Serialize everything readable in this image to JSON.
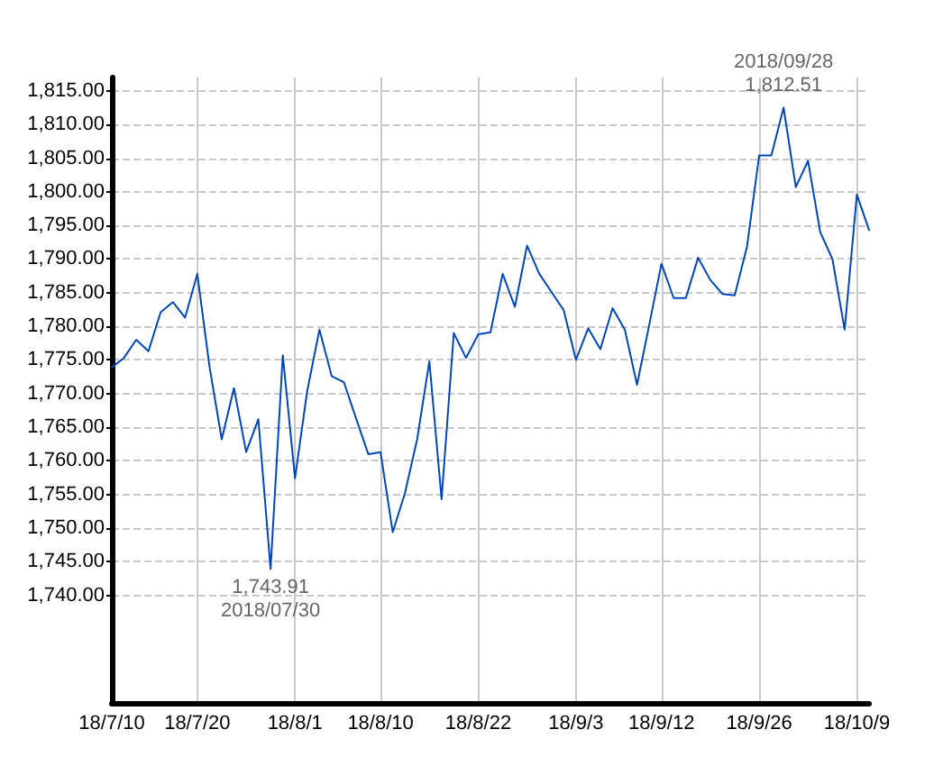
{
  "chart_data": {
    "type": "line",
    "categories": [
      "18/7/10",
      null,
      null,
      null,
      null,
      null,
      null,
      "18/7/20",
      null,
      null,
      null,
      null,
      null,
      null,
      null,
      "18/8/1",
      null,
      null,
      null,
      null,
      null,
      null,
      "18/8/10",
      null,
      null,
      null,
      null,
      null,
      null,
      null,
      "18/8/22",
      null,
      null,
      null,
      null,
      null,
      null,
      null,
      "18/9/3",
      null,
      null,
      null,
      null,
      null,
      null,
      "18/9/12",
      null,
      null,
      null,
      null,
      null,
      null,
      null,
      "18/9/26",
      null,
      null,
      null,
      null,
      null,
      null,
      null,
      "18/10/9",
      null
    ],
    "series": [
      {
        "color": "#0047bb",
        "values": [
          1773.9,
          1775.3,
          1778,
          1776.3,
          1782.1,
          1783.6,
          1781.3,
          1787.8,
          1774,
          1763.2,
          1770.8,
          1761.3,
          1766.2,
          1743.91,
          1775.7,
          1757.4,
          1770.4,
          1779.5,
          1772.6,
          1771.7,
          1766.3,
          1761,
          1761.3,
          1749.4,
          1755.2,
          1763.2,
          1774.8,
          1754.3,
          1779,
          1775.3,
          1778.8,
          1779.1,
          1787.8,
          1782.9,
          1792,
          1787.8,
          1785.1,
          1782.4,
          1775,
          1779.7,
          1776.6,
          1782.7,
          1779.5,
          1771.3,
          1780.2,
          1789.3,
          1784.2,
          1784.2,
          1790.2,
          1786.9,
          1784.8,
          1784.6,
          1791.8,
          1805.4,
          1805.4,
          1812.51,
          1800.7,
          1804.6,
          1794,
          1790,
          1779.5,
          1799.6,
          1794.3
        ]
      }
    ],
    "ylim": [
      1724,
      1817
    ],
    "yticks": [
      {
        "value": 1740,
        "label": "1,740.00"
      },
      {
        "value": 1745,
        "label": "1,745.00"
      },
      {
        "value": 1750,
        "label": "1,750.00"
      },
      {
        "value": 1755,
        "label": "1,755.00"
      },
      {
        "value": 1760,
        "label": "1,760.00"
      },
      {
        "value": 1765,
        "label": "1,765.00"
      },
      {
        "value": 1770,
        "label": "1,770.00"
      },
      {
        "value": 1775,
        "label": "1,775.00"
      },
      {
        "value": 1780,
        "label": "1,780.00"
      },
      {
        "value": 1785,
        "label": "1,785.00"
      },
      {
        "value": 1790,
        "label": "1,790.00"
      },
      {
        "value": 1795,
        "label": "1,795.00"
      },
      {
        "value": 1800,
        "label": "1,800.00"
      },
      {
        "value": 1805,
        "label": "1,805.00"
      },
      {
        "value": 1810,
        "label": "1,810.00"
      },
      {
        "value": 1815,
        "label": "1,815.00"
      }
    ],
    "annotations": [
      {
        "text": "1,743.91\n2018/07/30",
        "y": 1743.91
      },
      {
        "text": "2018/09/28\n1,812.51",
        "y": 1812.51
      }
    ],
    "grid": true,
    "marker": "none",
    "line_style": "solid"
  }
}
